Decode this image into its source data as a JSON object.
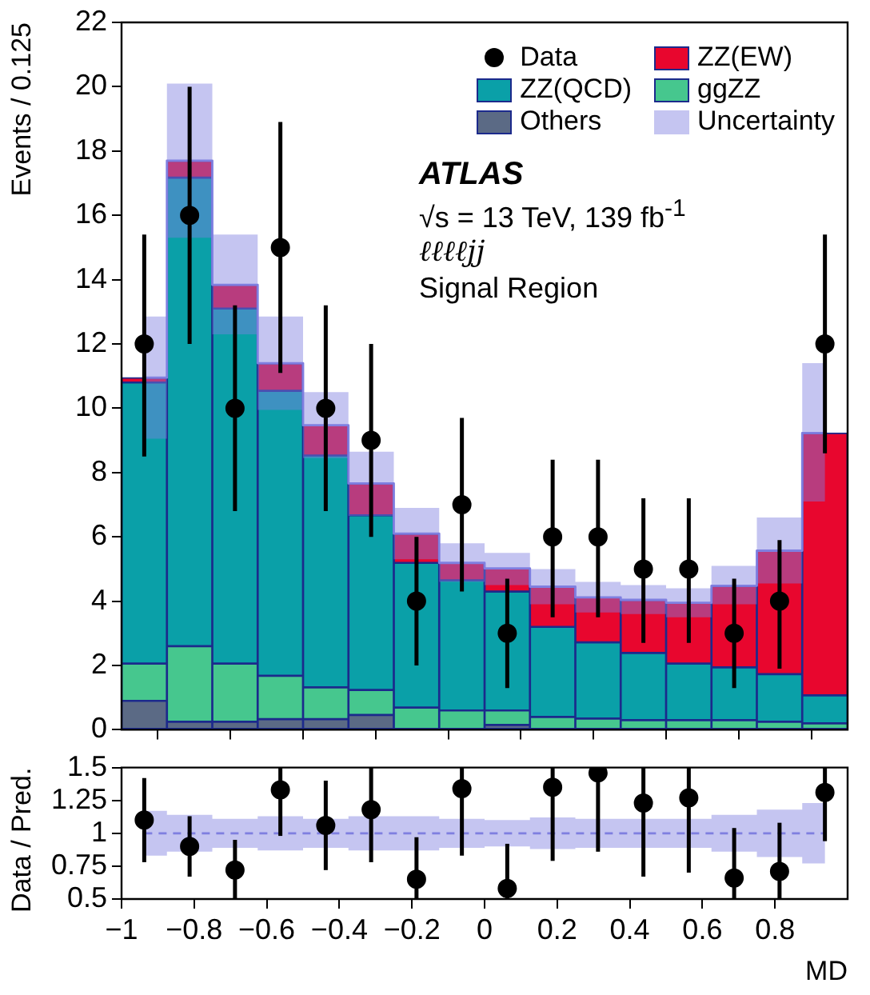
{
  "chart_data": [
    {
      "type": "bar",
      "ylabel": "Events / 0.125",
      "x": [
        -0.9375,
        -0.8125,
        -0.6875,
        -0.5625,
        -0.4375,
        -0.3125,
        -0.1875,
        -0.0625,
        0.0625,
        0.1875,
        0.3125,
        0.4375,
        0.5625,
        0.6875,
        0.8125,
        0.9375
      ],
      "stacked": true,
      "series": [
        {
          "name": "Others",
          "color": "#5b6a85",
          "values": [
            0.9,
            0.25,
            0.25,
            0.33,
            0.33,
            0.46,
            0,
            0,
            0.15,
            0,
            0,
            0,
            0,
            0,
            0,
            0
          ]
        },
        {
          "name": "ggZZ",
          "color": "#46c78e",
          "values": [
            1.16,
            2.35,
            1.81,
            1.35,
            0.99,
            0.78,
            0.69,
            0.6,
            0.45,
            0.4,
            0.35,
            0.3,
            0.3,
            0.3,
            0.25,
            0.2
          ]
        },
        {
          "name": "ZZ(QCD)",
          "color": "#0aa0a8",
          "values": [
            8.74,
            14.57,
            11.04,
            8.86,
            7.21,
            5.43,
            4.5,
            4.05,
            3.7,
            2.8,
            2.37,
            2.09,
            1.76,
            1.64,
            1.48,
            0.87
          ]
        },
        {
          "name": "ZZ(EW)",
          "color": "#e8062e",
          "values": [
            0.15,
            0.53,
            0.74,
            0.86,
            0.94,
            0.99,
            0.91,
            0.54,
            0.72,
            1.25,
            1.4,
            1.65,
            1.89,
            2.54,
            3.84,
            8.16
          ]
        },
        {
          "name": "Data",
          "type": "scatter",
          "marker": "circle",
          "color": "#000000",
          "values": [
            12,
            16,
            10,
            15,
            10,
            9,
            4,
            7,
            3,
            6,
            6,
            5,
            5,
            3,
            4,
            12
          ],
          "errors": [
            [
              8.5,
              15.4
            ],
            [
              12,
              20
            ],
            [
              6.8,
              13.2
            ],
            [
              11.1,
              18.9
            ],
            [
              6.8,
              13.2
            ],
            [
              6,
              12
            ],
            [
              2,
              6
            ],
            [
              4.3,
              9.7
            ],
            [
              1.3,
              4.7
            ],
            [
              3.5,
              8.4
            ],
            [
              3.5,
              8.4
            ],
            [
              2.7,
              7.2
            ],
            [
              2.7,
              7.2
            ],
            [
              1.3,
              4.7
            ],
            [
              1.9,
              5.9
            ],
            [
              8.6,
              15.4
            ]
          ]
        },
        {
          "name": "Uncertainty",
          "type": "step",
          "marker": "none",
          "color": "#7f7fe0",
          "values": [
            10.95,
            17.7,
            13.84,
            11.4,
            9.47,
            7.66,
            6.1,
            5.19,
            5.02,
            4.45,
            4.12,
            4.04,
            3.95,
            4.48,
            5.57,
            9.23
          ],
          "lower": [
            9.05,
            15.3,
            12.3,
            9.95,
            8.45,
            6.65,
            5.3,
            4.6,
            4.5,
            3.9,
            3.65,
            3.6,
            3.5,
            3.9,
            4.55,
            7.1
          ],
          "upper": [
            12.85,
            20.1,
            15.4,
            12.85,
            10.5,
            8.65,
            6.9,
            5.8,
            5.5,
            5.0,
            4.6,
            4.5,
            4.4,
            5.1,
            6.6,
            11.4
          ]
        }
      ],
      "xlim": [
        -1,
        1
      ],
      "xticks": [
        {
          "value": -1,
          "label": null
        },
        {
          "value": -0.8,
          "label": null
        },
        {
          "value": -0.6,
          "label": null
        },
        {
          "value": -0.4,
          "label": null
        },
        {
          "value": -0.2,
          "label": null
        },
        {
          "value": 0,
          "label": null
        },
        {
          "value": 0.2,
          "label": null
        },
        {
          "value": 0.4,
          "label": null
        },
        {
          "value": 0.6,
          "label": null
        },
        {
          "value": 0.8,
          "label": null
        }
      ],
      "ylim": [
        0,
        22
      ],
      "yticks": [
        0,
        2,
        4,
        6,
        8,
        10,
        12,
        14,
        16,
        18,
        20,
        22
      ],
      "tick_labels": "y",
      "legend": "top right",
      "annotations": [
        "ATLAS",
        "√s = 13 TeV, 139 fb$^{-1}$",
        "ℓℓℓℓjj",
        "Signal Region"
      ]
    },
    {
      "type": "scatter",
      "xlabel": "MD",
      "ylabel": "Data / Pred.",
      "x": [
        -0.9375,
        -0.8125,
        -0.6875,
        -0.5625,
        -0.4375,
        -0.3125,
        -0.1875,
        -0.0625,
        0.0625,
        0.1875,
        0.3125,
        0.4375,
        0.5625,
        0.6875,
        0.8125,
        0.9375
      ],
      "series": [
        {
          "type": "step",
          "marker": "none",
          "color": "#7f7fe0",
          "line_style": "dashed",
          "values": [
            1,
            1,
            1,
            1,
            1,
            1,
            1,
            1,
            1,
            1,
            1,
            1,
            1,
            1,
            1,
            1
          ],
          "lower": [
            0.83,
            0.86,
            0.89,
            0.87,
            0.89,
            0.87,
            0.87,
            0.89,
            0.9,
            0.88,
            0.89,
            0.89,
            0.89,
            0.86,
            0.82,
            0.77
          ],
          "upper": [
            1.17,
            1.14,
            1.11,
            1.13,
            1.11,
            1.13,
            1.13,
            1.11,
            1.1,
            1.12,
            1.11,
            1.11,
            1.11,
            1.14,
            1.18,
            1.23
          ]
        },
        {
          "color": "#000000",
          "marker": "circle",
          "values": [
            1.1,
            0.9,
            0.72,
            1.33,
            1.06,
            1.18,
            0.65,
            1.34,
            0.58,
            1.35,
            1.46,
            1.23,
            1.27,
            0.66,
            0.71,
            1.31
          ],
          "errors": [
            [
              0.78,
              1.42
            ],
            [
              0.67,
              1.13
            ],
            [
              0.5,
              0.95
            ],
            [
              0.98,
              1.5
            ],
            [
              0.72,
              1.4
            ],
            [
              0.78,
              1.5
            ],
            [
              0.5,
              0.97
            ],
            [
              0.83,
              1.5
            ],
            [
              0.5,
              0.92
            ],
            [
              0.79,
              1.5
            ],
            [
              0.86,
              1.5
            ],
            [
              0.67,
              1.5
            ],
            [
              0.7,
              1.5
            ],
            [
              0.5,
              1.04
            ],
            [
              0.5,
              1.08
            ],
            [
              0.94,
              1.5
            ]
          ]
        }
      ],
      "xlim": [
        -1,
        1
      ],
      "xticks": [
        {
          "value": -1,
          "label": "−1"
        },
        {
          "value": -0.8,
          "label": "−0.8"
        },
        {
          "value": -0.6,
          "label": "−0.6"
        },
        {
          "value": -0.4,
          "label": "−0.4"
        },
        {
          "value": -0.2,
          "label": "−0.2"
        },
        0,
        0.2,
        0.4,
        0.6,
        0.8
      ],
      "ylim": [
        0.5,
        1.5
      ],
      "yticks": [
        0.5,
        0.75,
        1,
        1.25,
        1.5
      ]
    }
  ]
}
